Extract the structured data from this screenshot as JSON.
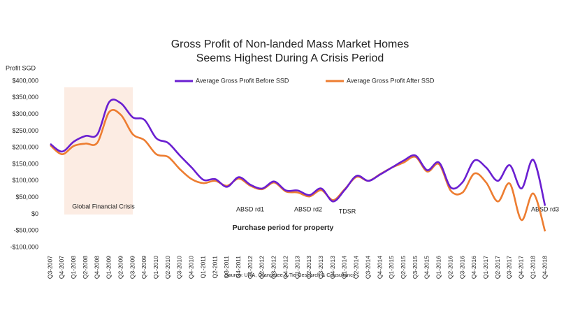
{
  "chart_data": {
    "type": "line",
    "title": [
      "Gross Profit of Non-landed Mass Market Homes",
      "Seems Highest During A Crisis Period"
    ],
    "y_axis_label": "Profit SGD",
    "x_axis_label": "Purchase period for property",
    "source": "Source: URA, Orangetee & Tie Research & Consultancy",
    "annotations": [
      "Global Financial Crisis",
      "ABSD rd1",
      "ABSD rd2",
      "TDSR",
      "ABSD rd3"
    ],
    "categories": [
      "Q3-2007",
      "Q4-2007",
      "Q1-2008",
      "Q2-2008",
      "Q4-2008",
      "Q1-2009",
      "Q2-2009",
      "Q3-2009",
      "Q4-2009",
      "Q1-2010",
      "Q2-2010",
      "Q3-2010",
      "Q4-2010",
      "Q1-2011",
      "Q2-2011",
      "Q3-2011",
      "Q4-2011",
      "Q1-2012",
      "Q2-2012",
      "Q3-2012",
      "Q4-2012",
      "Q1-2013",
      "Q2-2013",
      "Q3-2013",
      "Q4-2013",
      "Q1-2014",
      "Q2-2014",
      "Q3-2014",
      "Q4-2014",
      "Q1-2015",
      "Q2-2015",
      "Q3-2015",
      "Q4-2015",
      "Q1-2016",
      "Q2-2016",
      "Q3-2016",
      "Q4-2016",
      "Q1-2017",
      "Q2-2017",
      "Q3-2017",
      "Q4-2017",
      "Q1-2018",
      "Q4-2018"
    ],
    "series": [
      {
        "name": "Average Gross Profit Before SSD",
        "color": "#6a1fd1",
        "values": [
          211000,
          188000,
          218000,
          235000,
          240000,
          337000,
          333000,
          291000,
          283000,
          228000,
          214000,
          176000,
          140000,
          103000,
          105000,
          82000,
          111000,
          88000,
          77000,
          98000,
          71000,
          71000,
          57000,
          77000,
          38000,
          73000,
          115000,
          100000,
          119000,
          140000,
          161000,
          176000,
          132000,
          155000,
          80000,
          96000,
          161000,
          140000,
          100000,
          147000,
          77000,
          163000,
          25000
        ]
      },
      {
        "name": "Average Gross Profit After SSD",
        "color": "#ed7d31",
        "values": [
          207000,
          180000,
          205000,
          212000,
          215000,
          307000,
          298000,
          240000,
          222000,
          180000,
          172000,
          135000,
          105000,
          93000,
          100000,
          85000,
          107000,
          85000,
          75000,
          95000,
          68000,
          65000,
          53000,
          72000,
          42000,
          75000,
          112000,
          100000,
          120000,
          140000,
          155000,
          172000,
          128000,
          150000,
          70000,
          65000,
          122000,
          95000,
          38000,
          92000,
          -18000,
          62000,
          -52000
        ]
      }
    ],
    "ylim": [
      -100000,
      400000
    ],
    "yticks": [
      {
        "value": -100000,
        "label": "-$100,000"
      },
      {
        "value": -50000,
        "label": "-$50,000"
      },
      {
        "value": 0,
        "label": "$0"
      },
      {
        "value": 50000,
        "label": "$50,000"
      },
      {
        "value": 100000,
        "label": "$100,000"
      },
      {
        "value": 150000,
        "label": "$150,000"
      },
      {
        "value": 200000,
        "label": "$200,000"
      },
      {
        "value": 250000,
        "label": "$250,000"
      },
      {
        "value": 300000,
        "label": "$300,000"
      },
      {
        "value": 350000,
        "label": "$350,000"
      },
      {
        "value": 400000,
        "label": "$400,000"
      }
    ],
    "grid": false
  }
}
